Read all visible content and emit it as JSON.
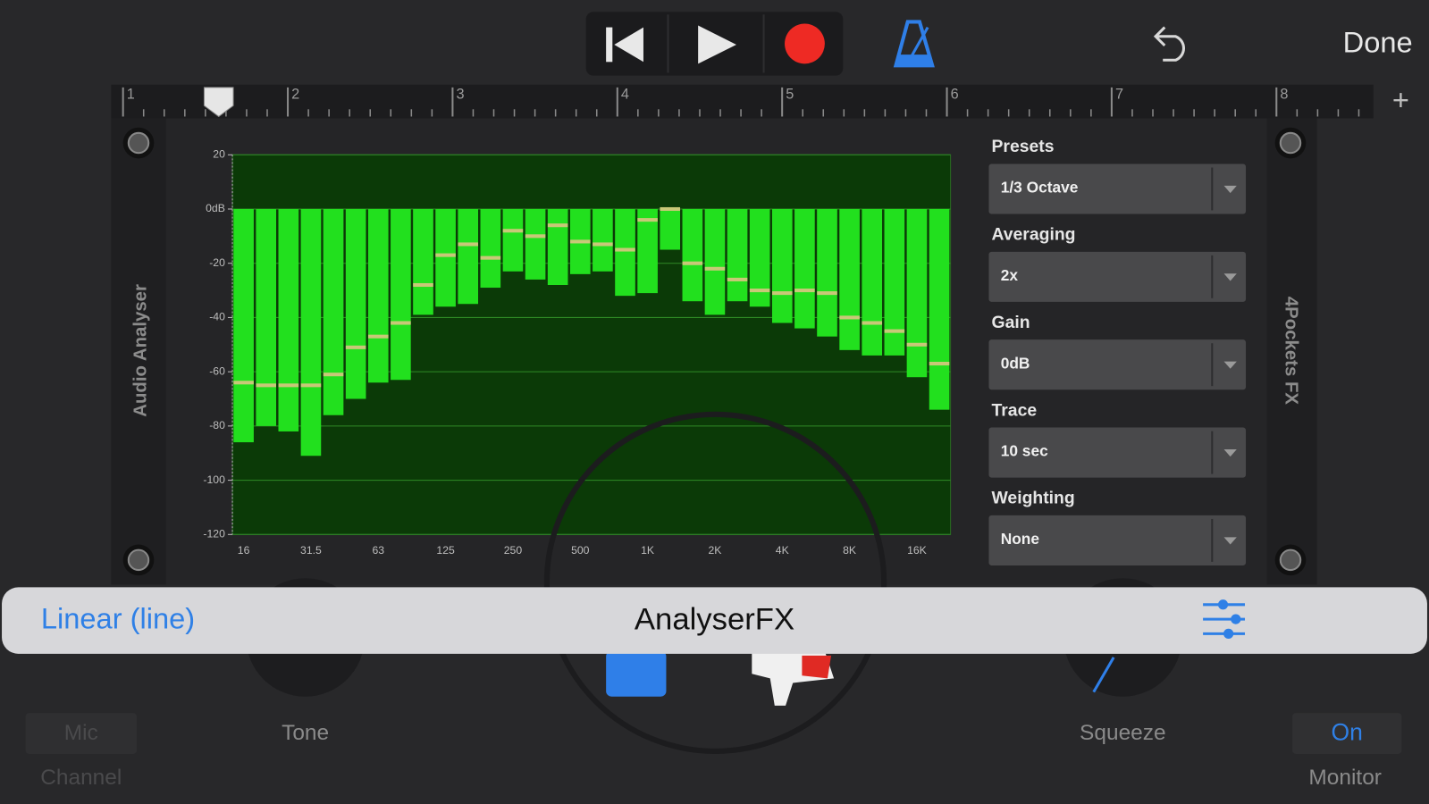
{
  "toolbar": {
    "done": "Done"
  },
  "ruler": {
    "marks": [
      "1",
      "2",
      "3",
      "4",
      "5",
      "6",
      "7",
      "8"
    ]
  },
  "plugin": {
    "side_labels": [
      "Audio Analyser",
      "4Pockets FX"
    ],
    "controls": [
      {
        "label": "Presets",
        "value": "1/3 Octave"
      },
      {
        "label": "Averaging",
        "value": "2x"
      },
      {
        "label": "Gain",
        "value": "0dB"
      },
      {
        "label": "Trace",
        "value": "10 sec"
      },
      {
        "label": "Weighting",
        "value": "None"
      }
    ]
  },
  "chart_data": {
    "type": "bar",
    "categories": [
      "16",
      null,
      null,
      "31.5",
      null,
      null,
      "63",
      null,
      null,
      "125",
      null,
      null,
      "250",
      null,
      null,
      "500",
      null,
      null,
      "1K",
      null,
      null,
      "2K",
      null,
      null,
      "4K",
      null,
      null,
      "8K",
      null,
      null,
      "16K",
      null
    ],
    "series": [
      {
        "color": "#22e01e",
        "values": [
          -86,
          -80,
          -82,
          -91,
          -76,
          -70,
          -64,
          -63,
          -39,
          -36,
          -35,
          -29,
          -23,
          -26,
          -28,
          -24,
          -23,
          -32,
          -31,
          -15,
          -34,
          -39,
          -34,
          -36,
          -42,
          -44,
          -47,
          -52,
          -54,
          -54,
          -62,
          -74
        ]
      },
      {
        "color": "#c8c878",
        "values": [
          -64,
          -65,
          -65,
          -65,
          -61,
          -51,
          -47,
          -42,
          -28,
          -17,
          -13,
          -18,
          -8,
          -10,
          -6,
          -12,
          -13,
          -15,
          -4,
          0,
          -20,
          -22,
          -26,
          -30,
          -31,
          -30,
          -31,
          -40,
          -42,
          -45,
          -50,
          -57
        ]
      }
    ],
    "ylim": [
      -120,
      20
    ],
    "yticks": [
      20,
      {
        "value": 0,
        "label": "0dB"
      },
      -20,
      -40,
      -60,
      -80,
      -100,
      -120
    ],
    "grid": true
  },
  "footer": {
    "mode": "Linear (line)",
    "title": "AnalyserFX"
  },
  "bottom_controls": {
    "mic": "Mic",
    "channel": "Channel",
    "tone": "Tone",
    "squeeze": "Squeeze",
    "on": "On",
    "monitor": "Monitor"
  }
}
